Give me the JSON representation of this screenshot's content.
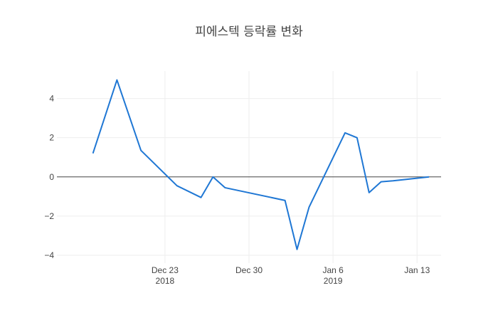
{
  "chart_data": {
    "type": "line",
    "title": "피에스텍 등락률 변화",
    "xlabel": "",
    "ylabel": "",
    "line_color": "#1f77d4",
    "grid": true,
    "zeroline": true,
    "xrange": [
      "2018-12-14",
      "2019-01-15"
    ],
    "ylim": [
      -4.4,
      5.4
    ],
    "x_ticks": [
      {
        "date": "2018-12-23",
        "label": "Dec 23",
        "sublabel": "2018"
      },
      {
        "date": "2018-12-30",
        "label": "Dec 30",
        "sublabel": ""
      },
      {
        "date": "2019-01-06",
        "label": "Jan 6",
        "sublabel": "2019"
      },
      {
        "date": "2019-01-13",
        "label": "Jan 13",
        "sublabel": ""
      }
    ],
    "y_ticks": [
      {
        "value": 4,
        "label": "4"
      },
      {
        "value": 2,
        "label": "2"
      },
      {
        "value": 0,
        "label": "0"
      },
      {
        "value": -2,
        "label": "−2"
      },
      {
        "value": -4,
        "label": "−4"
      }
    ],
    "series": [
      {
        "x": [
          "2018-12-17",
          "2018-12-19",
          "2018-12-21",
          "2018-12-24",
          "2018-12-26",
          "2018-12-27",
          "2018-12-28",
          "2019-01-02",
          "2019-01-03",
          "2019-01-04",
          "2019-01-07",
          "2019-01-08",
          "2019-01-09",
          "2019-01-10",
          "2019-01-11",
          "2019-01-14"
        ],
        "y": [
          1.2,
          4.95,
          1.35,
          -0.45,
          -1.05,
          0.0,
          -0.55,
          -1.2,
          -3.7,
          -1.55,
          2.25,
          2.0,
          -0.8,
          -0.25,
          -0.2,
          0.0
        ]
      }
    ]
  }
}
